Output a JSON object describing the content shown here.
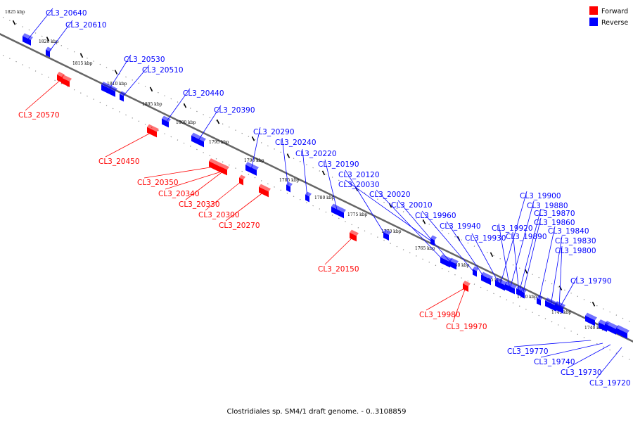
{
  "caption": "Clostridiales sp. SM4/1 draft genome. - 0..3108859",
  "legend": [
    {
      "label": "Forward",
      "color": "#ff0000"
    },
    {
      "label": "Reverse",
      "color": "#0000ff"
    }
  ],
  "ticks": [
    "1825 kbp",
    "1820 kbp",
    "1815 kbp",
    "1810 kbp",
    "1805 kbp",
    "1800 kbp",
    "1795 kbp",
    "1790 kbp",
    "1785 kbp",
    "1780 kbp",
    "1775 kbp",
    "1770 kbp",
    "1765 kbp",
    "1760 kbp",
    "1755 kbp",
    "1750 kbp",
    "1745 kbp",
    "1740 kbp"
  ],
  "genes": [
    {
      "name": "CL3_20640",
      "strand": "reverse"
    },
    {
      "name": "CL3_20610",
      "strand": "reverse"
    },
    {
      "name": "CL3_20530",
      "strand": "reverse"
    },
    {
      "name": "CL3_20510",
      "strand": "reverse"
    },
    {
      "name": "CL3_20570",
      "strand": "forward"
    },
    {
      "name": "CL3_20440",
      "strand": "reverse"
    },
    {
      "name": "CL3_20390",
      "strand": "reverse"
    },
    {
      "name": "CL3_20450",
      "strand": "forward"
    },
    {
      "name": "CL3_20290",
      "strand": "reverse"
    },
    {
      "name": "CL3_20240",
      "strand": "reverse"
    },
    {
      "name": "CL3_20220",
      "strand": "reverse"
    },
    {
      "name": "CL3_20190",
      "strand": "reverse"
    },
    {
      "name": "CL3_20120",
      "strand": "reverse"
    },
    {
      "name": "CL3_20030",
      "strand": "reverse"
    },
    {
      "name": "CL3_20020",
      "strand": "reverse"
    },
    {
      "name": "CL3_20010",
      "strand": "reverse"
    },
    {
      "name": "CL3_19960",
      "strand": "reverse"
    },
    {
      "name": "CL3_19940",
      "strand": "reverse"
    },
    {
      "name": "CL3_19930",
      "strand": "reverse"
    },
    {
      "name": "CL3_20350",
      "strand": "forward"
    },
    {
      "name": "CL3_20340",
      "strand": "forward"
    },
    {
      "name": "CL3_20330",
      "strand": "forward"
    },
    {
      "name": "CL3_20300",
      "strand": "forward"
    },
    {
      "name": "CL3_20270",
      "strand": "forward"
    },
    {
      "name": "CL3_20150",
      "strand": "forward"
    },
    {
      "name": "CL3_19900",
      "strand": "reverse"
    },
    {
      "name": "CL3_19880",
      "strand": "reverse"
    },
    {
      "name": "CL3_19870",
      "strand": "reverse"
    },
    {
      "name": "CL3_19920",
      "strand": "reverse"
    },
    {
      "name": "CL3_19860",
      "strand": "reverse"
    },
    {
      "name": "CL3_19890",
      "strand": "reverse"
    },
    {
      "name": "CL3_19840",
      "strand": "reverse"
    },
    {
      "name": "CL3_19830",
      "strand": "reverse"
    },
    {
      "name": "CL3_19800",
      "strand": "reverse"
    },
    {
      "name": "CL3_19790",
      "strand": "reverse"
    },
    {
      "name": "CL3_19980",
      "strand": "forward"
    },
    {
      "name": "CL3_19970",
      "strand": "forward"
    },
    {
      "name": "CL3_19770",
      "strand": "reverse"
    },
    {
      "name": "CL3_19740",
      "strand": "reverse"
    },
    {
      "name": "CL3_19730",
      "strand": "reverse"
    },
    {
      "name": "CL3_19720",
      "strand": "reverse"
    }
  ]
}
